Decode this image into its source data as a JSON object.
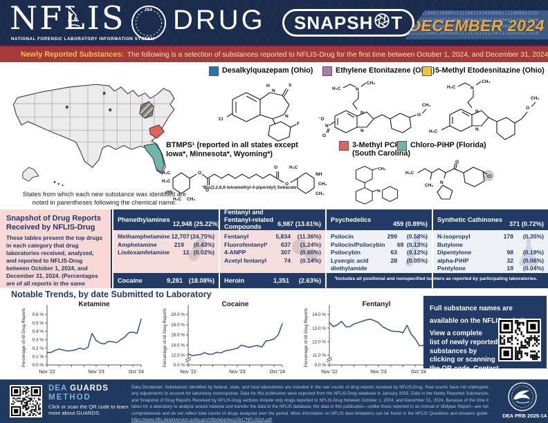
{
  "header": {
    "brand": "NFLIS",
    "brand_sub": "NATIONAL FORENSIC LABORATORY INFORMATION SYSTEM",
    "product": "DRUG",
    "badge": "SNAPSHOT",
    "badge_left": "SNAPSH",
    "badge_right": "T",
    "issue_date": "DECEMBER 2024",
    "binary_lines": [
      "1001111000110000111110011010100001111000001101",
      "1000111110000111001100011000111100001110111000",
      "1110001110000001111010100110011100000100111101",
      "0111110000110000001111010100110011100000011010"
    ],
    "colors": {
      "header_bg": "#1b2b4d",
      "issue_gold": "#efa73b",
      "band_blue": "#3c5a86"
    }
  },
  "banner": {
    "label": "Newly Reported Substances:",
    "text": "The following is a selection of substances reported to NFLIS-Drug for the first time between October 1, 2024, and December 31, 2024.",
    "bg": "#a63a3a"
  },
  "map_section": {
    "caption_line1": "States from which each new substance was identified are",
    "caption_line2": "noted in parentheses following the chemical name.",
    "asterisk": "*",
    "asterisk_states": [
      "Minnesota",
      "Iowa",
      "Wyoming"
    ],
    "highlight_states": [
      {
        "state": "Ohio",
        "style": "striped",
        "colors": [
          "#2e74b5",
          "#a97ca5",
          "#f2c13e"
        ]
      },
      {
        "state": "South Carolina",
        "color": "#e2635c"
      },
      {
        "state": "Florida",
        "color": "#6eb5aa"
      }
    ]
  },
  "substances": [
    {
      "label": "Desalkylquazepam (Ohio)",
      "swatch": "#2e74b5",
      "structure": "desalkylquazepam"
    },
    {
      "label": "Ethylene Etonitazene (Ohio)",
      "swatch": "#a97ca5",
      "structure": "ethylene-etonitazene"
    },
    {
      "label": "5-Methyl Etodesnitazine (Ohio)",
      "swatch": "#f2c13e",
      "structure": "5-methyl-etodesnitazine"
    },
    {
      "label_line1": "BTMPS¹ (reported in all states except",
      "label_line2": "Iowa*, Minnesota*, Wyoming*)",
      "footnote": "¹Bis(2,2,6,6-tetramethyl-4-piperidyl) Sebacate",
      "structure": "btmps"
    },
    {
      "label_line1": "3-Methyl PCP",
      "label_line2": "(South Carolina)",
      "swatch": "#e2635c",
      "structure": "3-methyl-pcp"
    },
    {
      "label": "Chloro-PiHP (Florida)",
      "swatch": "#6eb5aa",
      "structure": "chloro-pihp"
    }
  ],
  "snapshot": {
    "panel_title": "Snapshot of Drug Reports Received by NFLIS-Drug",
    "panel_text": "These tables present the top drugs in each category that drug laboratories received, analyzed, and reported to NFLIS-Drug between October 1, 2024, and December 31, 2024. (Percentages are of all reports in the same period.)",
    "tables": [
      {
        "name": "Phenethylamines",
        "count": "12,948",
        "pct": "(25.22%)",
        "body": "pink",
        "watermark": "capsule",
        "rows": [
          [
            "Methamphetamine",
            "12,707",
            "(24.75%)"
          ],
          [
            "Amphetamine",
            "219",
            "(0.43%)"
          ],
          [
            "Lisdexamfetamine",
            "12",
            "(0.02%)"
          ]
        ],
        "footer": [
          "Cocaine",
          "9,281",
          "(18.08%)"
        ]
      },
      {
        "name": "Fentanyl and Fentanyl-related Compounds",
        "count": "6,987",
        "pct": "(13.61%)",
        "body": "pink",
        "watermark": "pills",
        "rows": [
          [
            "Fentanyl",
            "5,834",
            "(11.36%)"
          ],
          [
            "Fluorofentanyl²",
            "637",
            "(1.24%)"
          ],
          [
            "4-ANPP",
            "307",
            "(0.60%)"
          ],
          [
            "Acetyl fentanyl",
            "74",
            "(0.14%)"
          ]
        ],
        "footer": [
          "Heroin",
          "1,351",
          "(2.63%)"
        ]
      },
      {
        "name": "Psychedelics",
        "count": "459",
        "pct": "(0.89%)",
        "body": "light",
        "watermark": "testtube",
        "rows": [
          [
            "Psilocin",
            "299",
            "(0.58%)"
          ],
          [
            "Psilocin/Psilocybin",
            "69",
            "(0.13%)"
          ],
          [
            "Psilocybin",
            "63",
            "(0.12%)"
          ],
          [
            "Lysergic acid diethylamide (LSD)",
            "28",
            "(0.05%)"
          ]
        ],
        "footer": null
      },
      {
        "name": "Synthetic Cathinones",
        "count": "371",
        "pct": "(0.72%)",
        "body": "light",
        "watermark": "flask",
        "rows": [
          [
            "N-isopropyl Butylone",
            "178",
            "(0.35%)"
          ],
          [
            "Dipentylone",
            "98",
            "(0.19%)"
          ],
          [
            "alpha-PiHP",
            "32",
            "(0.06%)"
          ],
          [
            "Pentylone",
            "19",
            "(0.04%)"
          ],
          [
            "N-Cyclohexylmethylone",
            "12",
            "(0.02%)"
          ]
        ],
        "footer": null
      }
    ],
    "footnote": "²Includes all positional and nonspecified isomers as reported by participating laboratories."
  },
  "trends": {
    "title": "Notable Trends, by date Submitted to Laboratory"
  },
  "chart_data": [
    {
      "type": "line",
      "title": "Ketamine",
      "ylabel": "Percentage of All Drug Reports",
      "x_period": "monthly, Nov 2022 - Oct 2024",
      "x_labels": [
        "Nov '22",
        "Nov '23",
        "Oct '24"
      ],
      "x_label_indices": [
        0,
        12,
        23
      ],
      "y_ticks": [
        0.0,
        0.1,
        0.2,
        0.3,
        0.4,
        0.5,
        0.6
      ],
      "ylim": [
        0.0,
        0.6
      ],
      "axis_break": false,
      "line_color": "#2f5480",
      "values": [
        0.145,
        0.15,
        0.175,
        0.19,
        0.175,
        0.165,
        0.17,
        0.18,
        0.2,
        0.185,
        0.21,
        0.375,
        0.29,
        0.26,
        0.25,
        0.28,
        0.275,
        0.265,
        0.3,
        0.33,
        0.385,
        0.39,
        0.375,
        0.545
      ]
    },
    {
      "type": "line",
      "title": "Cocaine",
      "ylabel": "Percentage of All Drug Reports",
      "x_period": "monthly, Nov 2022 - Oct 2024",
      "x_labels": [
        "Nov '22",
        "Nov '23",
        "Oct '24"
      ],
      "x_label_indices": [
        0,
        12,
        23
      ],
      "y_ticks": [
        12.0,
        14.0,
        16.0,
        18.0,
        20.0
      ],
      "ylim": [
        12.0,
        20.0
      ],
      "axis_break": true,
      "line_color": "#2f5480",
      "values": [
        12.3,
        11.9,
        12.05,
        12.15,
        12.5,
        12.2,
        12.25,
        12.6,
        12.45,
        12.85,
        13.0,
        13.2,
        13.35,
        14.0,
        13.75,
        13.55,
        13.8,
        13.9,
        13.6,
        14.8,
        14.95,
        15.2,
        16.0,
        18.2
      ]
    },
    {
      "type": "line",
      "title": "Fentanyl",
      "ylabel": "Percentage of All Drug Reports",
      "x_period": "monthly, Nov 2022 - Oct 2024",
      "x_labels": [
        "Nov '22",
        "Nov '23",
        "Oct '24"
      ],
      "x_label_indices": [
        0,
        12,
        23
      ],
      "y_ticks": [
        11.0,
        12.0,
        13.0,
        14.0
      ],
      "ylim": [
        11.0,
        14.0
      ],
      "axis_break": true,
      "line_color": "#2f5480",
      "values": [
        13.4,
        13.1,
        13.25,
        13.5,
        13.1,
        13.1,
        13.3,
        13.4,
        13.5,
        13.6,
        13.65,
        13.55,
        13.4,
        13.1,
        12.95,
        12.8,
        12.75,
        12.75,
        12.65,
        13.2,
        12.55,
        12.2,
        11.7,
        11.72
      ]
    }
  ],
  "info_box": {
    "line1": "Full substance names are available on the NFLIS website. View a complete",
    "line2": "list of newly reported substances by clicking or scanning the QR code. Contact us at ",
    "link": "NFLIS@dea.gov",
    "after_link": "."
  },
  "footer": {
    "guards_dea": "DEA",
    "guards_name": "GUARDS",
    "guards_method": "METHOD",
    "guards_caption": "Click or scan the QR code to learn more about GUARDS.",
    "disclaimer": "Data Disclaimer: Substances identified by federal, state, and local laboratories are included in the raw counts of drug reports received by NFLIS-Drug. Raw counts have not undergone any adjustments to account for laboratory nonresponse. Data for this publication were exported from the NFLIS-Drug database in January 2025. Data in the Newly Reported Substances and Snapshot of Drug Reports Received by NFLIS-Drug sections include only drugs reported to NFLIS-Drug between October 1, 2024, and December 31, 2024. Because of the time it takes for a laboratory to analyze seized material and transfer the data to the NFLIS database, the data in this publication—unlike those reported in an Annual or Midyear Report—are not comprehensive and do not reflect total counts of drugs analyzed over the period. More information on NFLIS data limitations can be found in the NFLIS Questions and Answers guide: ",
    "disclaimer_link": "https://www.nflis.deadiversion.usdoj.gov/nflisdata/docs/2k17NFLISQA.pdf",
    "prb": "DEA PRB 2025-14"
  }
}
